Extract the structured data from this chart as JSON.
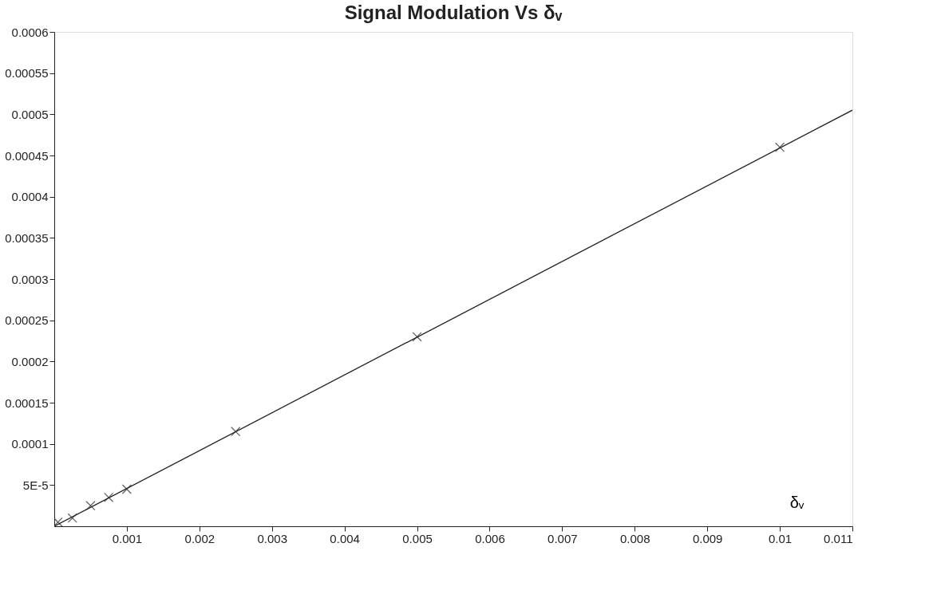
{
  "chart_data": {
    "type": "scatter",
    "title": "Signal Modulation Vs δᵥ",
    "xlabel": "δᵥ",
    "xlim": [
      0,
      0.011
    ],
    "xticks": [
      0.001,
      0.002,
      0.003,
      0.004,
      0.005,
      0.006,
      0.007,
      0.008,
      0.009,
      0.01,
      0.011
    ],
    "ylim": [
      0,
      0.0006
    ],
    "yticks": [
      {
        "value": 5e-05,
        "label": "5E-5"
      },
      0.0001,
      0.00015,
      0.0002,
      0.00025,
      0.0003,
      0.00035,
      0.0004,
      0.00045,
      0.0005,
      0.00055,
      0.0006
    ],
    "grid": false,
    "marker": "cross",
    "series": [
      {
        "color": "#222222",
        "x": [
          5e-05,
          0.00025,
          0.0005,
          0.00075,
          0.001,
          0.0025,
          0.005,
          0.01
        ],
        "values": [
          5e-06,
          1e-05,
          2.5e-05,
          3.5e-05,
          4.5e-05,
          0.000115,
          0.00023,
          0.00046
        ]
      },
      {
        "type": "line",
        "color": "#222222",
        "line_style": "solid",
        "marker": "none",
        "x": [
          0,
          0.011
        ],
        "values": [
          0,
          0.000505
        ]
      }
    ]
  }
}
